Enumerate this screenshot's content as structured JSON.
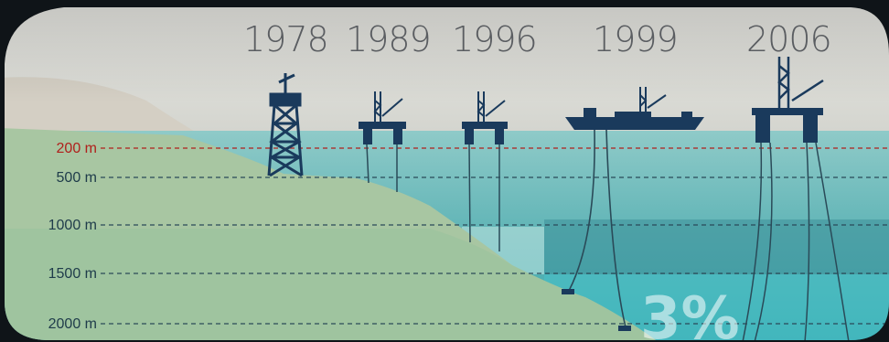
{
  "years": [
    "1978",
    "1989",
    "1996",
    "1999",
    "2006"
  ],
  "depth_labels": [
    "200 m",
    "500 m",
    "1000 m",
    "1500 m",
    "2000 m"
  ],
  "callout": "3%",
  "colors": {
    "sky": "#dcdcd6",
    "sea_surface": "#7cc3c2",
    "sea_deep": "#2f9fa6",
    "seabed": "#a9c7a4",
    "structure": "#1a3a5c",
    "highlight_depth": "#b0201c",
    "label": "#1e3b4a"
  }
}
